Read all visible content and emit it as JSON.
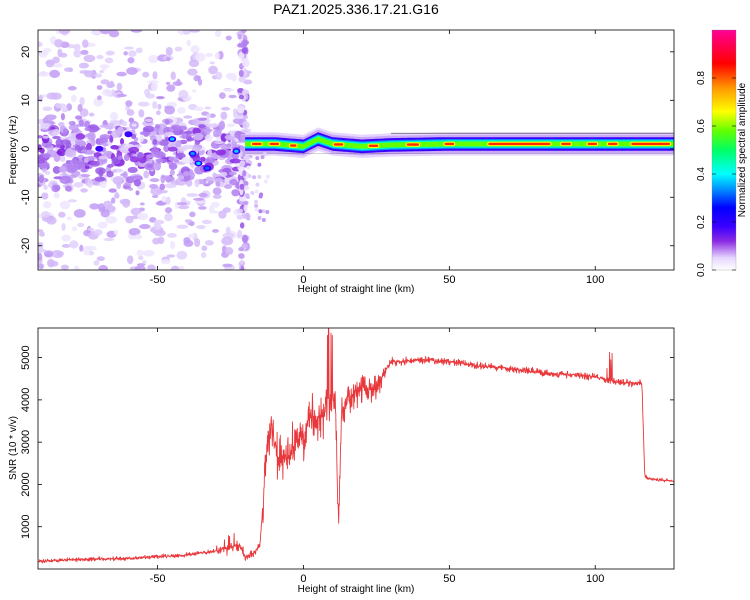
{
  "figure": {
    "title": "PAZ1.2025.336.17.21.G16"
  },
  "chart_data": [
    {
      "type": "heatmap",
      "title": "PAZ1.2025.336.17.21.G16",
      "xlabel": "Height of straight line (km)",
      "ylabel": "Frequency (Hz)",
      "xlim": [
        -91,
        127
      ],
      "ylim": [
        -25,
        24.5
      ],
      "xticks": [
        -50,
        0,
        50,
        100
      ],
      "yticks": [
        -20,
        -10,
        0,
        10,
        20
      ],
      "colorbar": {
        "label": "Normalized spectral amplitude",
        "range": [
          0,
          1
        ],
        "ticks": [
          "0.0",
          "0.2",
          "0.4",
          "0.6",
          "0.8"
        ],
        "colors": [
          "#ffffff",
          "#dcc8fa",
          "#8a2be2",
          "#3c00ff",
          "#0000ff",
          "#0096ff",
          "#00ffff",
          "#00ff64",
          "#64ff00",
          "#ffff00",
          "#ff9600",
          "#ff0000",
          "#ff0096"
        ]
      },
      "description_series": [
        {
          "name": "band_center_hz",
          "x": [
            -20,
            -10,
            0,
            5,
            10,
            20,
            30,
            50,
            70,
            90,
            110,
            127
          ],
          "values": [
            1.0,
            1.0,
            0.5,
            2.0,
            1.0,
            0.5,
            0.8,
            1.0,
            1.0,
            1.0,
            1.0,
            1.0
          ]
        }
      ]
    },
    {
      "type": "line",
      "xlabel": "Height of straight line (km)",
      "ylabel": "SNR (10 * v/v)",
      "xlim": [
        -91,
        127
      ],
      "ylim": [
        0,
        5700
      ],
      "xticks": [
        -50,
        0,
        50,
        100
      ],
      "yticks": [
        1000,
        2000,
        3000,
        4000,
        5000
      ],
      "series": [
        {
          "name": "SNR",
          "color": "#e8383c",
          "x": [
            -91,
            -80,
            -60,
            -40,
            -30,
            -25,
            -22,
            -20,
            -17,
            -15,
            -14,
            -13,
            -12,
            -11,
            -10,
            -8,
            -5,
            -2,
            0,
            2,
            5,
            7,
            8,
            9,
            10,
            11,
            12,
            13,
            15,
            18,
            20,
            25,
            28,
            30,
            40,
            50,
            60,
            70,
            80,
            90,
            100,
            105,
            110,
            115,
            116,
            117,
            118,
            120,
            127
          ],
          "values": [
            180,
            220,
            250,
            330,
            420,
            520,
            560,
            260,
            380,
            560,
            1350,
            2550,
            3300,
            3400,
            2900,
            2500,
            2700,
            3050,
            3200,
            3650,
            3600,
            3600,
            3850,
            4000,
            3800,
            3900,
            1100,
            3700,
            3950,
            4150,
            4250,
            4300,
            4700,
            4900,
            4950,
            4900,
            4800,
            4750,
            4650,
            4600,
            4550,
            4450,
            4400,
            4400,
            4350,
            2200,
            2150,
            2120,
            2080
          ]
        }
      ]
    }
  ]
}
